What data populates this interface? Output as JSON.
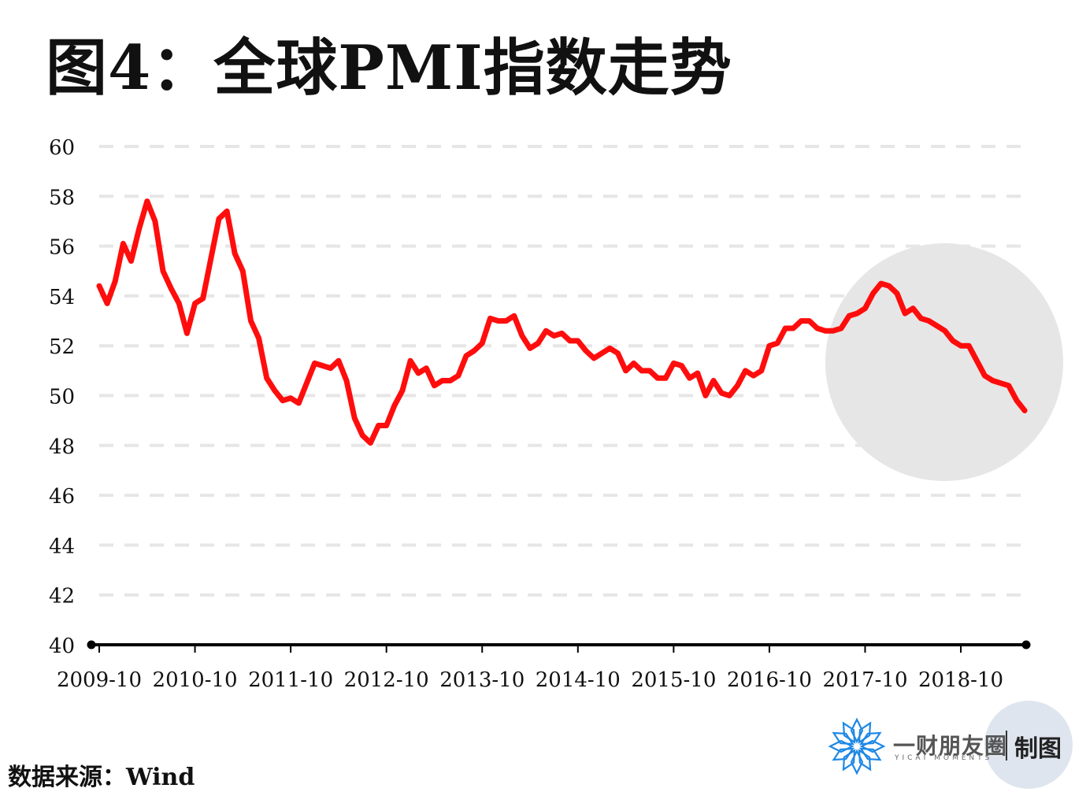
{
  "title": "图4：全球PMI指数走势",
  "source": "数据来源：Wind",
  "logo": {
    "name": "一财朋友圈",
    "sub": "YICAI MOMENTS",
    "made": "制图"
  },
  "colors": {
    "line": "#ff0000",
    "grid": "#e6e6e6",
    "axis": "#000000",
    "highlight": "#e6e6e6",
    "logo_blue": "#1e88e5"
  },
  "chart_data": {
    "type": "line",
    "title": "图4：全球PMI指数走势",
    "xlabel": "",
    "ylabel": "",
    "ylim": [
      40,
      60
    ],
    "yticks": [
      "60",
      "58",
      "56",
      "54",
      "52",
      "50",
      "48",
      "46",
      "44",
      "42",
      "40"
    ],
    "xtick_labels": [
      "2009-10",
      "2010-10",
      "2011-10",
      "2012-10",
      "2013-10",
      "2014-10",
      "2015-10",
      "2016-10",
      "2017-10",
      "2018-10"
    ],
    "grid": "horizontal dashed",
    "highlight": "shaded circle over 2017-2019",
    "series": [
      {
        "x_start": "2009-10",
        "frequency": "monthly",
        "values": [
          54.4,
          53.7,
          54.6,
          56.1,
          55.4,
          56.7,
          57.8,
          57.0,
          55.0,
          54.3,
          53.7,
          52.5,
          53.7,
          53.9,
          55.5,
          57.1,
          57.4,
          55.7,
          55.0,
          53.0,
          52.3,
          50.7,
          50.2,
          49.8,
          49.9,
          49.7,
          50.5,
          51.3,
          51.2,
          51.1,
          51.4,
          50.6,
          49.1,
          48.4,
          48.1,
          48.8,
          48.8,
          49.6,
          50.2,
          51.4,
          50.9,
          51.1,
          50.4,
          50.6,
          50.6,
          50.8,
          51.6,
          51.8,
          52.1,
          53.1,
          53.0,
          53.0,
          53.2,
          52.4,
          51.9,
          52.1,
          52.6,
          52.4,
          52.5,
          52.2,
          52.2,
          51.8,
          51.5,
          51.7,
          51.9,
          51.7,
          51.0,
          51.3,
          51.0,
          51.0,
          50.7,
          50.7,
          51.3,
          51.2,
          50.7,
          50.9,
          50.0,
          50.6,
          50.1,
          50.0,
          50.4,
          51.0,
          50.8,
          51.0,
          52.0,
          52.1,
          52.7,
          52.7,
          53.0,
          53.0,
          52.7,
          52.6,
          52.6,
          52.7,
          53.2,
          53.3,
          53.5,
          54.1,
          54.5,
          54.4,
          54.1,
          53.3,
          53.5,
          53.1,
          53.0,
          52.8,
          52.6,
          52.2,
          52.0,
          52.0,
          51.4,
          50.8,
          50.6,
          50.5,
          50.4,
          49.8,
          49.4
        ]
      }
    ]
  }
}
